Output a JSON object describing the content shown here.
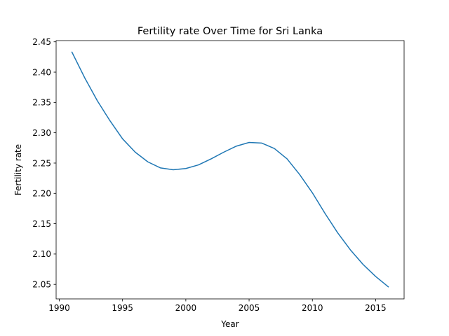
{
  "chart_data": {
    "type": "line",
    "title": "Fertility rate Over Time for Sri Lanka",
    "xlabel": "Year",
    "ylabel": "Fertility rate",
    "xlim": [
      1989.75,
      2017.25
    ],
    "ylim": [
      2.026,
      2.452
    ],
    "xticks": [
      1990,
      1995,
      2000,
      2005,
      2010,
      2015
    ],
    "xtick_labels": [
      "1990",
      "1995",
      "2000",
      "2005",
      "2010",
      "2015"
    ],
    "yticks": [
      2.05,
      2.1,
      2.15,
      2.2,
      2.25,
      2.3,
      2.35,
      2.4,
      2.45
    ],
    "ytick_labels": [
      "2.05",
      "2.10",
      "2.15",
      "2.20",
      "2.25",
      "2.30",
      "2.35",
      "2.40",
      "2.45"
    ],
    "grid": false,
    "series": [
      {
        "color": "#1f77b4",
        "x": [
          1991,
          1992,
          1993,
          1994,
          1995,
          1996,
          1997,
          1998,
          1999,
          2000,
          2001,
          2002,
          2003,
          2004,
          2005,
          2006,
          2007,
          2008,
          2009,
          2010,
          2011,
          2012,
          2013,
          2014,
          2015,
          2016
        ],
        "y": [
          2.433,
          2.391,
          2.353,
          2.32,
          2.29,
          2.268,
          2.252,
          2.242,
          2.239,
          2.241,
          2.247,
          2.257,
          2.268,
          2.278,
          2.284,
          2.283,
          2.274,
          2.257,
          2.231,
          2.201,
          2.167,
          2.135,
          2.107,
          2.083,
          2.063,
          2.046
        ]
      }
    ]
  }
}
